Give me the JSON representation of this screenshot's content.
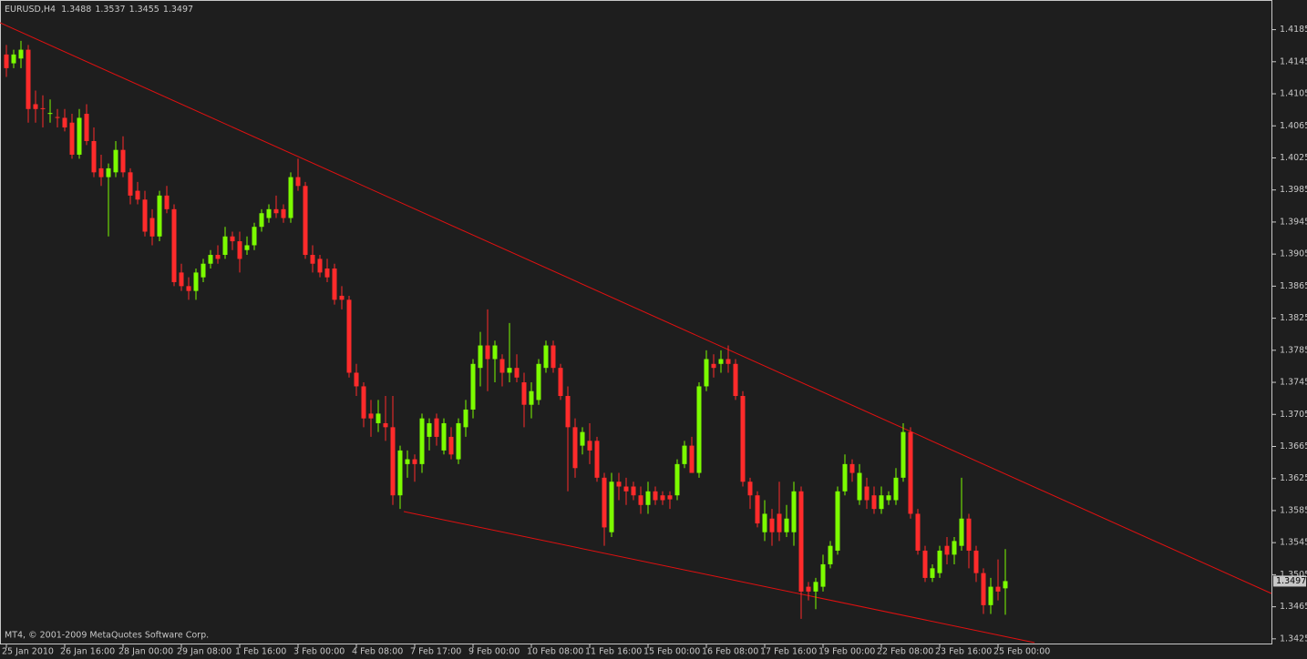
{
  "chart_data": {
    "type": "candlestick",
    "symbol": "EURUSD,H4",
    "footer": "MT4, © 2001-2009 MetaQuotes Software Corp.",
    "up_color": "#7cfc00",
    "down_color": "#ff2b2b",
    "ylim": [
      1.3418,
      1.4222
    ],
    "yticks": [
      1.4185,
      1.4145,
      1.4105,
      1.4065,
      1.4025,
      1.3985,
      1.3945,
      1.3905,
      1.3865,
      1.3825,
      1.3785,
      1.3745,
      1.3705,
      1.3665,
      1.3625,
      1.3585,
      1.3545,
      1.3505,
      1.3465,
      1.3425
    ],
    "categories": [
      "25 Jan 2010",
      null,
      null,
      null,
      null,
      null,
      null,
      null,
      "26 Jan 16:00",
      null,
      null,
      null,
      null,
      null,
      null,
      null,
      "28 Jan 00:00",
      null,
      null,
      null,
      null,
      null,
      null,
      null,
      "29 Jan 08:00",
      null,
      null,
      null,
      null,
      null,
      null,
      null,
      "1 Feb 16:00",
      null,
      null,
      null,
      null,
      null,
      null,
      null,
      "3 Feb 00:00",
      null,
      null,
      null,
      null,
      null,
      null,
      null,
      "4 Feb 08:00",
      null,
      null,
      null,
      null,
      null,
      null,
      null,
      "7 Feb 17:00",
      null,
      null,
      null,
      null,
      null,
      null,
      null,
      "9 Feb 00:00",
      null,
      null,
      null,
      null,
      null,
      null,
      null,
      "10 Feb 08:00",
      null,
      null,
      null,
      null,
      null,
      null,
      null,
      "11 Feb 16:00",
      null,
      null,
      null,
      null,
      null,
      null,
      null,
      "15 Feb 00:00",
      null,
      null,
      null,
      null,
      null,
      null,
      null,
      "16 Feb 08:00",
      null,
      null,
      null,
      null,
      null,
      null,
      null,
      "17 Feb 16:00",
      null,
      null,
      null,
      null,
      null,
      null,
      null,
      "19 Feb 00:00",
      null,
      null,
      null,
      null,
      null,
      null,
      null,
      "22 Feb 08:00",
      null,
      null,
      null,
      null,
      null,
      null,
      null,
      "23 Feb 16:00",
      null,
      null,
      null,
      null,
      null,
      null,
      null,
      "25 Feb 00:00",
      null
    ],
    "open": [
      1.4154,
      1.4143,
      1.4149,
      1.416,
      1.4092,
      1.4087,
      1.408,
      1.4076,
      1.4075,
      1.4069,
      1.4029,
      1.408,
      1.4046,
      1.4012,
      1.4001,
      1.4007,
      1.4035,
      1.4007,
      1.3984,
      1.3973,
      1.395,
      1.3927,
      1.3978,
      1.3961,
      1.3882,
      1.3865,
      1.3859,
      1.3876,
      1.3893,
      1.3904,
      1.3904,
      1.3927,
      1.3921,
      1.391,
      1.3916,
      1.3939,
      1.395,
      1.3961,
      1.3961,
      1.395,
      1.4001,
      1.399,
      1.3904,
      1.3899,
      1.3887,
      1.3887,
      1.3853,
      1.3848,
      1.3757,
      1.374,
      1.3706,
      1.3694,
      1.3694,
      1.3689,
      1.3604,
      1.3643,
      1.3649,
      1.3643,
      1.3677,
      1.37,
      1.366,
      1.3677,
      1.3649,
      1.3689,
      1.3711,
      1.3763,
      1.3791,
      1.3774,
      1.3774,
      1.3757,
      1.3763,
      1.3745,
      1.3717,
      1.3723,
      1.3763,
      1.3791,
      1.3763,
      1.3728,
      1.3689,
      1.3666,
      1.3672,
      1.3672,
      1.3626,
      1.3558,
      1.3621,
      1.3615,
      1.3615,
      1.3604,
      1.3592,
      1.3609,
      1.3604,
      1.3604,
      1.3604,
      1.3643,
      1.3666,
      1.3632,
      1.374,
      1.3768,
      1.3768,
      1.3774,
      1.3768,
      1.3728,
      1.3621,
      1.3604,
      1.3558,
      1.3575,
      1.3581,
      1.3558,
      1.3558,
      1.3609,
      1.349,
      1.3484,
      1.349,
      1.3518,
      1.3535,
      1.3609,
      1.3643,
      1.3598,
      1.3615,
      1.3604,
      1.3587,
      1.3598,
      1.3598,
      1.3626,
      1.3683,
      1.3581,
      1.3535,
      1.3501,
      1.3507,
      1.3541,
      1.353,
      1.3541,
      1.3575,
      1.3535,
      1.3507,
      1.3467,
      1.349,
      1.3488
    ],
    "high": [
      1.4166,
      1.416,
      1.4171,
      1.4166,
      1.4109,
      1.4103,
      1.4098,
      1.4086,
      1.4086,
      1.408,
      1.4086,
      1.4092,
      1.4063,
      1.4029,
      1.4018,
      1.4046,
      1.4052,
      1.4012,
      1.3995,
      1.3984,
      1.3961,
      1.3984,
      1.399,
      1.3967,
      1.3893,
      1.3876,
      1.3887,
      1.3899,
      1.391,
      1.3916,
      1.3939,
      1.3933,
      1.3933,
      1.3927,
      1.3944,
      1.3961,
      1.3967,
      1.3978,
      1.3967,
      1.4007,
      1.4024,
      1.3995,
      1.3916,
      1.3904,
      1.3899,
      1.3893,
      1.3865,
      1.3853,
      1.3768,
      1.3745,
      1.3723,
      1.3723,
      1.3728,
      1.3728,
      1.3666,
      1.366,
      1.3655,
      1.3706,
      1.37,
      1.3706,
      1.37,
      1.3689,
      1.37,
      1.3723,
      1.3774,
      1.3808,
      1.3836,
      1.3797,
      1.378,
      1.3819,
      1.378,
      1.3757,
      1.3745,
      1.3774,
      1.3797,
      1.3797,
      1.3768,
      1.374,
      1.37,
      1.3689,
      1.3694,
      1.3677,
      1.3632,
      1.3632,
      1.3632,
      1.3626,
      1.3621,
      1.3615,
      1.3621,
      1.3615,
      1.3609,
      1.3609,
      1.3649,
      1.3672,
      1.3677,
      1.3745,
      1.3785,
      1.378,
      1.3785,
      1.3791,
      1.3774,
      1.3734,
      1.3626,
      1.3609,
      1.3598,
      1.3587,
      1.3621,
      1.3592,
      1.3621,
      1.3615,
      1.3496,
      1.3501,
      1.353,
      1.3547,
      1.3615,
      1.3655,
      1.3649,
      1.3643,
      1.3626,
      1.3615,
      1.3615,
      1.3609,
      1.3638,
      1.3694,
      1.3689,
      1.3587,
      1.3541,
      1.3518,
      1.3541,
      1.3552,
      1.3552,
      1.3626,
      1.3581,
      1.3541,
      1.3513,
      1.3501,
      1.3524,
      1.3537
    ],
    "low": [
      1.4126,
      1.4137,
      1.4137,
      1.4069,
      1.4069,
      1.4063,
      1.4069,
      1.4063,
      1.4058,
      1.4024,
      1.4024,
      1.4041,
      1.4001,
      1.399,
      1.3927,
      1.4001,
      1.4001,
      1.3967,
      1.3967,
      1.3927,
      1.3916,
      1.3921,
      1.3956,
      1.3865,
      1.3859,
      1.3848,
      1.3848,
      1.387,
      1.3887,
      1.3893,
      1.3899,
      1.391,
      1.3882,
      1.3904,
      1.391,
      1.3933,
      1.3944,
      1.395,
      1.3944,
      1.3944,
      1.3984,
      1.3899,
      1.3882,
      1.3876,
      1.387,
      1.3842,
      1.3836,
      1.3751,
      1.3728,
      1.3689,
      1.3677,
      1.3683,
      1.3672,
      1.3592,
      1.3587,
      1.3626,
      1.3621,
      1.3632,
      1.366,
      1.3666,
      1.3655,
      1.3649,
      1.3643,
      1.3677,
      1.37,
      1.374,
      1.3734,
      1.3745,
      1.374,
      1.3745,
      1.3745,
      1.3689,
      1.37,
      1.3717,
      1.3757,
      1.3757,
      1.3723,
      1.3609,
      1.3626,
      1.3655,
      1.3643,
      1.3621,
      1.3541,
      1.3552,
      1.3598,
      1.3592,
      1.3598,
      1.3581,
      1.3581,
      1.3592,
      1.3592,
      1.3587,
      1.3598,
      1.3638,
      1.3632,
      1.3626,
      1.3734,
      1.3751,
      1.3757,
      1.3757,
      1.3723,
      1.3615,
      1.3587,
      1.3564,
      1.3547,
      1.3541,
      1.3547,
      1.3552,
      1.3541,
      1.345,
      1.3473,
      1.3462,
      1.3484,
      1.3513,
      1.353,
      1.3604,
      1.3621,
      1.3592,
      1.3587,
      1.3581,
      1.3581,
      1.3592,
      1.3592,
      1.3621,
      1.3575,
      1.353,
      1.3496,
      1.3496,
      1.3501,
      1.3518,
      1.3518,
      1.3535,
      1.3513,
      1.3496,
      1.3456,
      1.3456,
      1.3473,
      1.3455
    ],
    "close": [
      1.4137,
      1.4154,
      1.416,
      1.4086,
      1.4086,
      1.4086,
      1.4081,
      1.4075,
      1.4063,
      1.4029,
      1.4075,
      1.4046,
      1.4007,
      1.4001,
      1.4012,
      1.4035,
      1.4007,
      1.3978,
      1.3973,
      1.3933,
      1.3927,
      1.3978,
      1.3961,
      1.387,
      1.3865,
      1.3859,
      1.3882,
      1.3893,
      1.3904,
      1.3899,
      1.3927,
      1.3921,
      1.3899,
      1.3916,
      1.3939,
      1.3956,
      1.3961,
      1.3956,
      1.395,
      1.4001,
      1.399,
      1.3904,
      1.3893,
      1.3882,
      1.3876,
      1.3848,
      1.3848,
      1.3757,
      1.374,
      1.37,
      1.37,
      1.3706,
      1.3689,
      1.3604,
      1.366,
      1.3649,
      1.3643,
      1.37,
      1.3694,
      1.3677,
      1.3694,
      1.3655,
      1.3694,
      1.3711,
      1.3768,
      1.3791,
      1.3774,
      1.3791,
      1.3757,
      1.3763,
      1.3751,
      1.3717,
      1.3734,
      1.3768,
      1.3791,
      1.3763,
      1.3728,
      1.3689,
      1.3638,
      1.3683,
      1.366,
      1.3626,
      1.3564,
      1.3621,
      1.3615,
      1.3609,
      1.3604,
      1.3592,
      1.3609,
      1.3598,
      1.3598,
      1.3599,
      1.3643,
      1.3666,
      1.3632,
      1.374,
      1.3774,
      1.3763,
      1.3774,
      1.3768,
      1.3728,
      1.3621,
      1.3604,
      1.3569,
      1.3581,
      1.3558,
      1.3558,
      1.3575,
      1.3609,
      1.3484,
      1.3484,
      1.3496,
      1.3518,
      1.3541,
      1.3609,
      1.3643,
      1.3632,
      1.3632,
      1.3598,
      1.3587,
      1.3604,
      1.3604,
      1.3626,
      1.3683,
      1.3581,
      1.3535,
      1.3501,
      1.3513,
      1.3535,
      1.353,
      1.3547,
      1.3575,
      1.3535,
      1.3507,
      1.3467,
      1.349,
      1.3484,
      1.3497
    ]
  }
}
